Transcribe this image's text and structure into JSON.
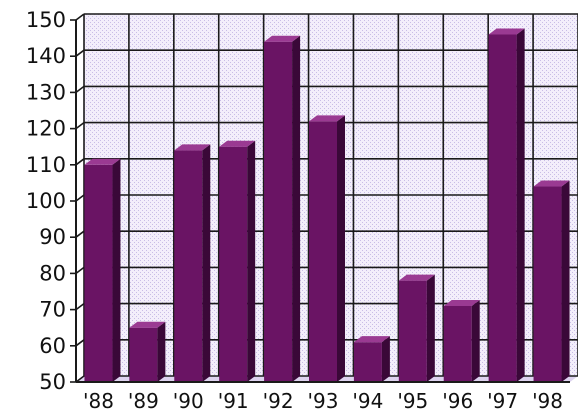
{
  "chart_data": {
    "type": "bar",
    "title": "",
    "xlabel": "",
    "ylabel": "",
    "style": "3d",
    "grid": true,
    "legend": "none",
    "colors": {
      "bar_front": "#6a1464",
      "bar_side": "#3a0838",
      "bar_top": "#9a3a92",
      "plot_background": "#efe9f9",
      "grid": "#1a1a1a",
      "text": "#111111"
    },
    "ylim": [
      50,
      150
    ],
    "yticks": [
      {
        "label": "150",
        "value": 150
      },
      {
        "label": "140",
        "value": 140
      },
      {
        "label": "130",
        "value": 130
      },
      {
        "label": "120",
        "value": 120
      },
      {
        "label": "110",
        "value": 110
      },
      {
        "label": "100",
        "value": 100
      },
      {
        "label": "90",
        "value": 90
      },
      {
        "label": "80",
        "value": 80
      },
      {
        "label": "70",
        "value": 70
      },
      {
        "label": "60",
        "value": 60
      },
      {
        "label": "50",
        "value": 50
      }
    ],
    "categories": [
      "'88",
      "'89",
      "'90",
      "'91",
      "'92",
      "'93",
      "'94",
      "'95",
      "'96",
      "'97",
      "'98"
    ],
    "values": [
      110,
      65,
      114,
      115,
      144,
      122,
      61,
      78,
      71,
      146,
      104
    ]
  }
}
